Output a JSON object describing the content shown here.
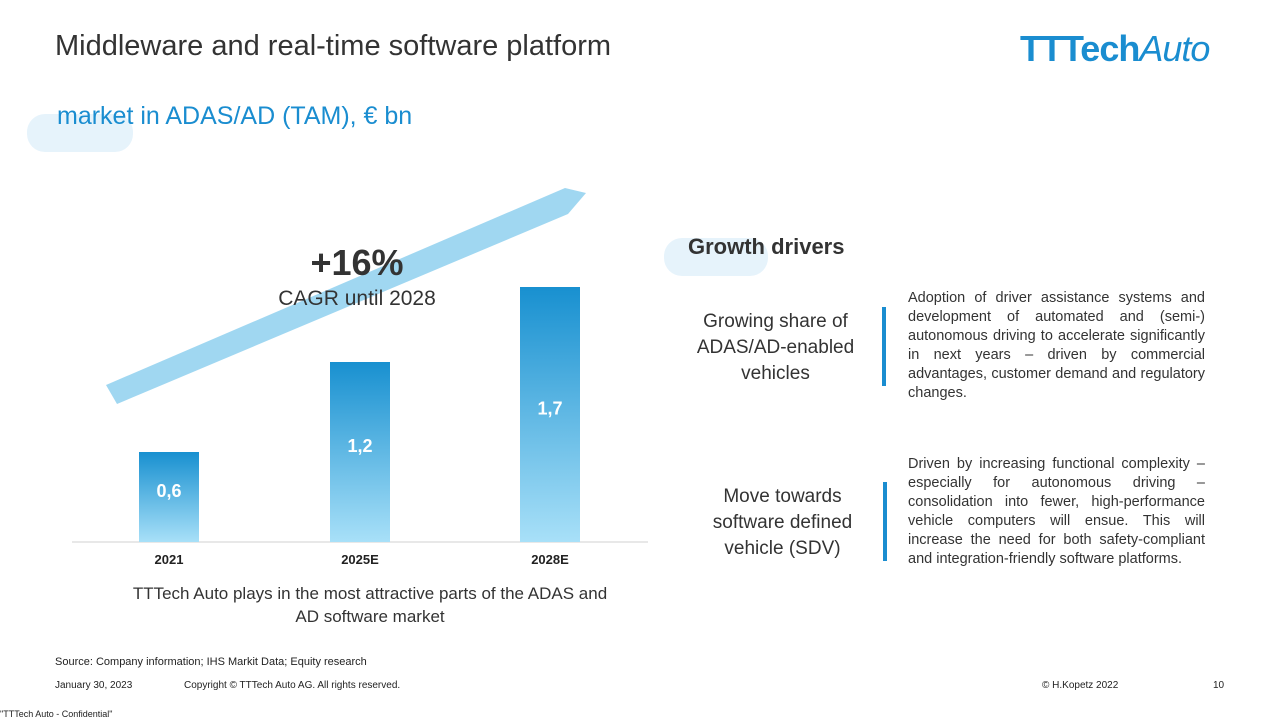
{
  "header": {
    "title": "Middleware and real-time software platform",
    "subtitle": "market in ADAS/AD (TAM), € bn",
    "logo_bold": "TTTech",
    "logo_light": "Auto"
  },
  "chart_data": {
    "type": "bar",
    "categories": [
      "2021",
      "2025E",
      "2028E"
    ],
    "values": [
      0.6,
      1.2,
      1.7
    ],
    "value_labels": [
      "0,6",
      "1,2",
      "1,7"
    ],
    "ylim": [
      0,
      1.9
    ],
    "annotation": {
      "value": "+16%",
      "label": "CAGR until 2028"
    },
    "colors": {
      "bar_top": "#1890d0",
      "bar_bottom": "#a8e0f8",
      "arrow": "#8fd0ee"
    },
    "grid": false
  },
  "chart_caption": "TTTech Auto plays in the most attractive parts of the ADAS and AD software market",
  "growth_drivers": {
    "title": "Growth drivers",
    "items": [
      {
        "heading": "Growing share of ADAS/AD-enabled vehicles",
        "text": "Adoption of driver assistance systems and development of automated and (semi-) autonomous driving to accelerate significantly in next years – driven by commercial advantages, customer demand and regulatory changes."
      },
      {
        "heading": "Move towards software defined vehicle (SDV)",
        "text": "Driven by increasing functional complexity – especially for autonomous driving – consolidation into fewer, high-performance vehicle computers will ensue. This will increase the need for both safety-compliant and integration-friendly software platforms."
      }
    ]
  },
  "footer": {
    "source": "Source: Company information; IHS Markit Data; Equity research",
    "date": "January 30, 2023",
    "copyright": "Copyright © TTTech Auto AG. All rights reserved.",
    "author": "© H.Kopetz 2022",
    "page": "10",
    "confidential": "\"TTTech Auto - Confidential\""
  }
}
